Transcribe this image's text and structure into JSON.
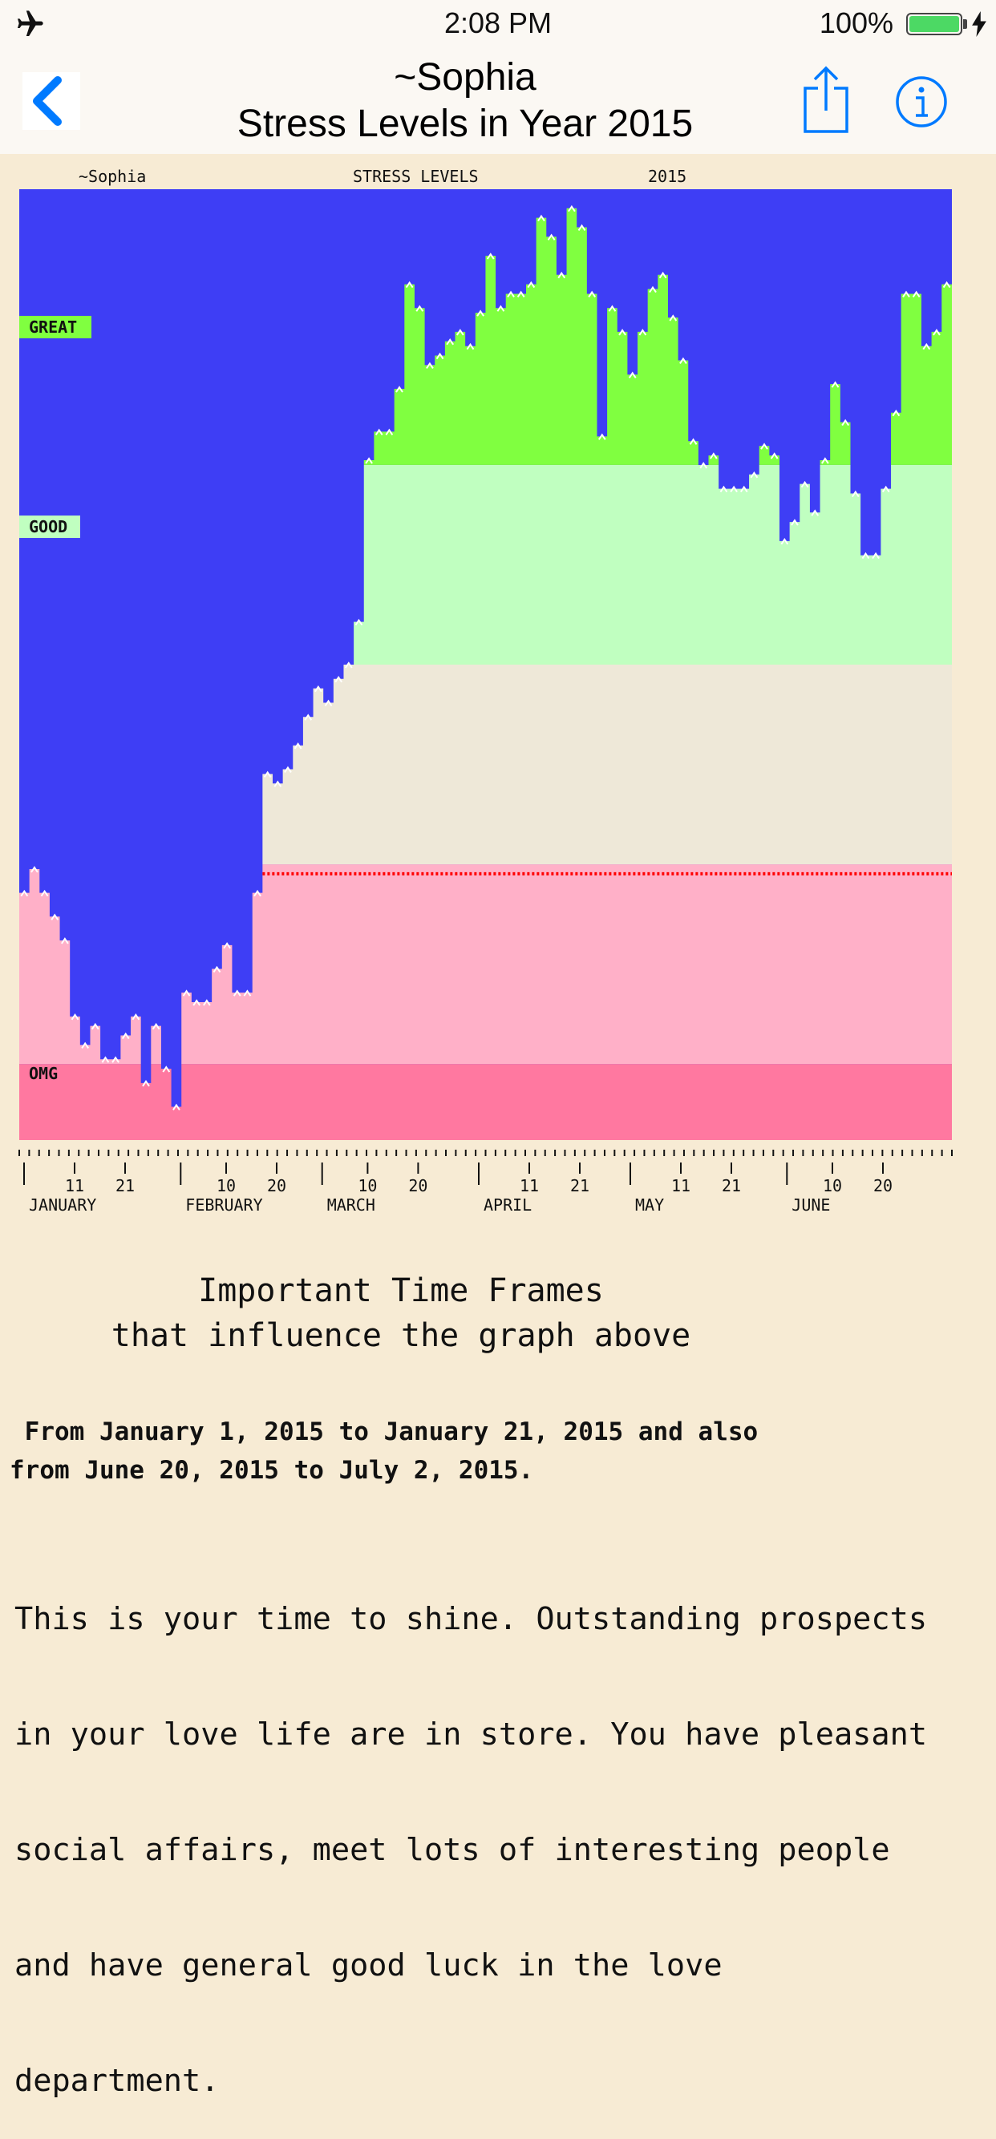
{
  "status_bar": {
    "time": "2:08 PM",
    "battery": "100%"
  },
  "nav": {
    "title_line1": "~Sophia",
    "title_line2": "Stress Levels in Year 2015",
    "back": "chevron-left-icon",
    "share": "share-icon",
    "info": "info-icon"
  },
  "chart_header": {
    "name": "~Sophia",
    "title": "STRESS LEVELS",
    "year": "2015"
  },
  "colors": {
    "accent": "#007aff",
    "sky": "#3e3ef5",
    "great": "#80ff40",
    "good": "#c0ffc0",
    "neutral": "#eee8d8",
    "stress": "#ffb0c8",
    "omg": "#ff78a0",
    "marker_line": "#ff0000"
  },
  "chart_data": {
    "type": "area",
    "title": "STRESS LEVELS",
    "ylim": [
      0,
      100
    ],
    "bands": [
      {
        "label": "OMG",
        "from": 0,
        "to": 8
      },
      {
        "label": "",
        "from": 8,
        "to": 29
      },
      {
        "label": "",
        "from": 29,
        "to": 50
      },
      {
        "label": "GOOD",
        "from": 50,
        "to": 71
      },
      {
        "label": "GREAT",
        "from": 71,
        "to": 100
      }
    ],
    "band_labels": [
      "GREAT",
      "GOOD",
      "OMG"
    ],
    "reference_line": 28,
    "start_date": "2015-01-01",
    "values": [
      26,
      28.5,
      26,
      23.5,
      21,
      13,
      10,
      12,
      8.5,
      8.5,
      11,
      13,
      6,
      12,
      7.5,
      3.5,
      15.5,
      14.5,
      14.5,
      18,
      20.5,
      15.5,
      15.5,
      26,
      38.5,
      37.5,
      39,
      41.5,
      44.5,
      47.5,
      46,
      48.5,
      50,
      54.5,
      71.5,
      74.5,
      74.5,
      79,
      90,
      87.5,
      81.5,
      82.5,
      84,
      85,
      83.5,
      87,
      93,
      87.5,
      89,
      89,
      90,
      97,
      95,
      91,
      98,
      96,
      89,
      74,
      87.5,
      85,
      80.5,
      85,
      89.5,
      91,
      86.5,
      82,
      73.5,
      71,
      72,
      68.5,
      68.5,
      68.5,
      70,
      73,
      72,
      63,
      65,
      69,
      66,
      71.5,
      79.5,
      75.5,
      68,
      61.5,
      61.5,
      68.5,
      76.5,
      89,
      89,
      83.5,
      85,
      90
    ],
    "x_axis": {
      "months": [
        {
          "label": "JANUARY",
          "day_index": 0
        },
        {
          "label": "FEBRUARY",
          "day_index": 31
        },
        {
          "label": "MARCH",
          "day_index": 59
        },
        {
          "label": "APRIL",
          "day_index": 90
        },
        {
          "label": "MAY",
          "day_index": 120
        },
        {
          "label": "JUNE",
          "day_index": 151
        }
      ],
      "day_ticks": [
        {
          "label": "11",
          "day_index": 10
        },
        {
          "label": "21",
          "day_index": 20
        },
        {
          "label": "10",
          "day_index": 40
        },
        {
          "label": "20",
          "day_index": 50
        },
        {
          "label": "10",
          "day_index": 68
        },
        {
          "label": "20",
          "day_index": 78
        },
        {
          "label": "11",
          "day_index": 100
        },
        {
          "label": "21",
          "day_index": 110
        },
        {
          "label": "11",
          "day_index": 130
        },
        {
          "label": "21",
          "day_index": 140
        },
        {
          "label": "10",
          "day_index": 160
        },
        {
          "label": "20",
          "day_index": 170
        }
      ],
      "day_count": 184
    }
  },
  "timeframes": {
    "heading_line1": "Important Time Frames",
    "heading_line2": "that influence the graph above",
    "period_line1": " From January 1, 2015 to January 21, 2015 and also",
    "period_line2": "from June 20, 2015 to July 2, 2015.",
    "description_lines": [
      "This is your time to shine. Outstanding prospects",
      "in your love life are in store. You have pleasant",
      "social affairs, meet lots of interesting people",
      "and have general good luck in the love",
      "department."
    ]
  }
}
